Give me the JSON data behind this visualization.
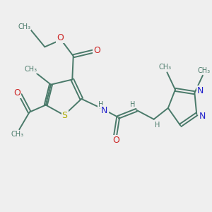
{
  "bg_color": "#efefef",
  "bond_color": "#4a7a6a",
  "S_color": "#aaaa00",
  "N_color": "#2222cc",
  "O_color": "#cc2222",
  "lw": 1.4,
  "fs": 8.5,
  "dbo": 0.06,
  "fig_size": [
    3.0,
    3.0
  ],
  "xlim": [
    0,
    10
  ],
  "ylim": [
    0,
    10
  ]
}
